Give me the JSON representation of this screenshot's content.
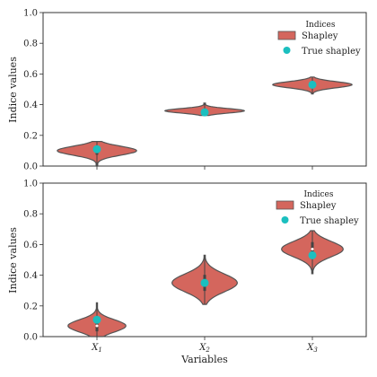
{
  "chart_data": [
    {
      "type": "violin",
      "categories": [
        "X1",
        "X2",
        "X3"
      ],
      "ylabel": "Indice values",
      "ylim": [
        0,
        1
      ],
      "yticks": [
        "0.0",
        "0.2",
        "0.4",
        "0.6",
        "0.8",
        "1.0"
      ],
      "legend": {
        "title": "Indices",
        "placement": "upper-right",
        "entries": [
          "Shapley",
          "True shapley"
        ]
      },
      "series": [
        {
          "name": "Shapley",
          "medians": [
            0.1,
            0.36,
            0.53
          ],
          "ranges": [
            [
              0.0,
              0.16
            ],
            [
              0.33,
              0.41
            ],
            [
              0.47,
              0.58
            ]
          ],
          "widths": [
            0.85,
            0.85,
            0.85
          ]
        },
        {
          "name": "True shapley",
          "values": [
            0.11,
            0.35,
            0.53
          ]
        }
      ],
      "colors": {
        "violin": "#d4665d",
        "edge": "#555555",
        "point": "#1bbfbf"
      }
    },
    {
      "type": "violin",
      "categories": [
        "X1",
        "X2",
        "X3"
      ],
      "xlabel": "Variables",
      "ylabel": "Indice values",
      "ylim": [
        0,
        1
      ],
      "yticks": [
        "0.0",
        "0.2",
        "0.4",
        "0.6",
        "0.8",
        "1.0"
      ],
      "legend": {
        "title": "Indices",
        "placement": "upper-right",
        "entries": [
          "Shapley",
          "True shapley"
        ]
      },
      "series": [
        {
          "name": "Shapley",
          "medians": [
            0.07,
            0.35,
            0.57
          ],
          "ranges": [
            [
              0.0,
              0.22
            ],
            [
              0.21,
              0.53
            ],
            [
              0.41,
              0.69
            ]
          ],
          "widths": [
            0.62,
            0.7,
            0.66
          ]
        },
        {
          "name": "True shapley",
          "values": [
            0.11,
            0.35,
            0.53
          ]
        }
      ],
      "colors": {
        "violin": "#d4665d",
        "edge": "#555555",
        "point": "#1bbfbf"
      }
    }
  ],
  "xtick_main": [
    "X",
    "X",
    "X"
  ],
  "xtick_sub": [
    "1",
    "2",
    "3"
  ]
}
